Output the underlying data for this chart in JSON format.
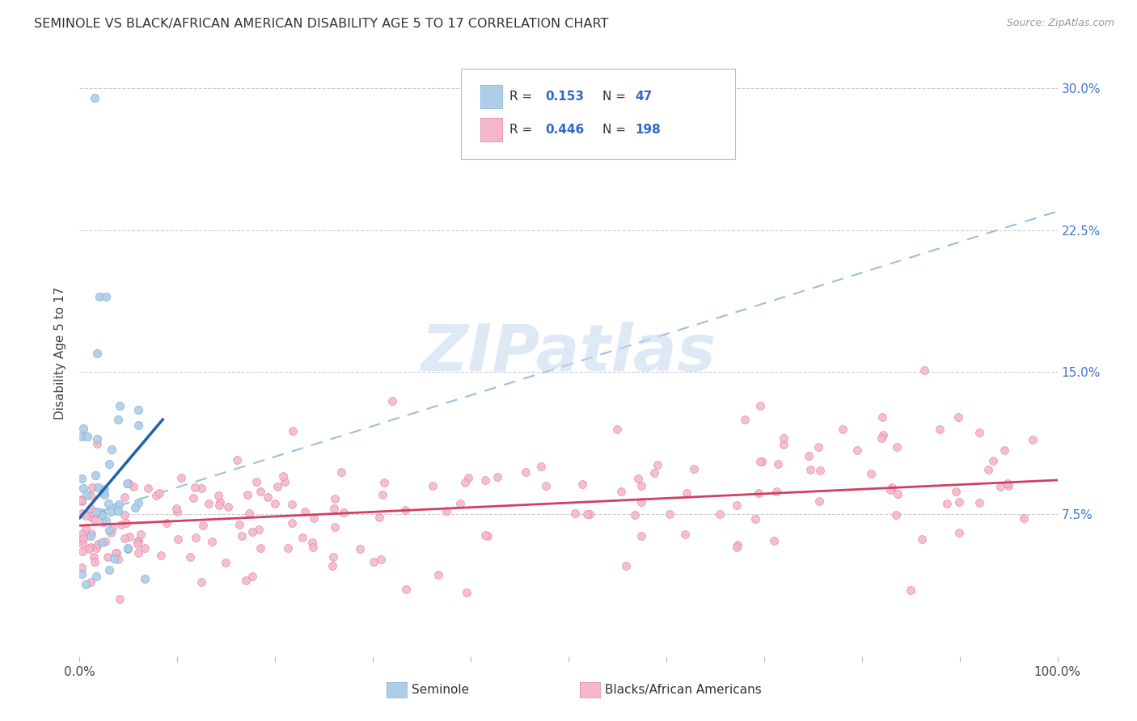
{
  "title": "SEMINOLE VS BLACK/AFRICAN AMERICAN DISABILITY AGE 5 TO 17 CORRELATION CHART",
  "source": "Source: ZipAtlas.com",
  "ylabel": "Disability Age 5 to 17",
  "xlim": [
    0.0,
    1.0
  ],
  "ylim": [
    0.0,
    0.32
  ],
  "yticks": [
    0.0,
    0.075,
    0.15,
    0.225,
    0.3
  ],
  "ytick_labels": [
    "",
    "7.5%",
    "15.0%",
    "22.5%",
    "30.0%"
  ],
  "xticks": [
    0.0,
    0.1,
    0.2,
    0.3,
    0.4,
    0.5,
    0.6,
    0.7,
    0.8,
    0.9,
    1.0
  ],
  "seminole_color": "#aecde8",
  "seminole_edge": "#7aadd4",
  "black_color": "#f5b8cb",
  "black_edge": "#e080a0",
  "trend_seminole_color": "#2060b0",
  "trend_black_color": "#d04060",
  "trend_dashed_color": "#9bbfe0",
  "R_seminole": 0.153,
  "N_seminole": 47,
  "R_black": 0.446,
  "N_black": 198,
  "watermark": "ZIPatlas",
  "seminole_label": "Seminole",
  "black_label": "Blacks/African Americans",
  "trend_seminole_x0": 0.0,
  "trend_seminole_y0": 0.073,
  "trend_seminole_x1": 0.085,
  "trend_seminole_y1": 0.125,
  "trend_black_x0": 0.0,
  "trend_black_y0": 0.069,
  "trend_black_x1": 1.0,
  "trend_black_y1": 0.093,
  "trend_dashed_x0": 0.0,
  "trend_dashed_y0": 0.073,
  "trend_dashed_x1": 1.0,
  "trend_dashed_y1": 0.235
}
